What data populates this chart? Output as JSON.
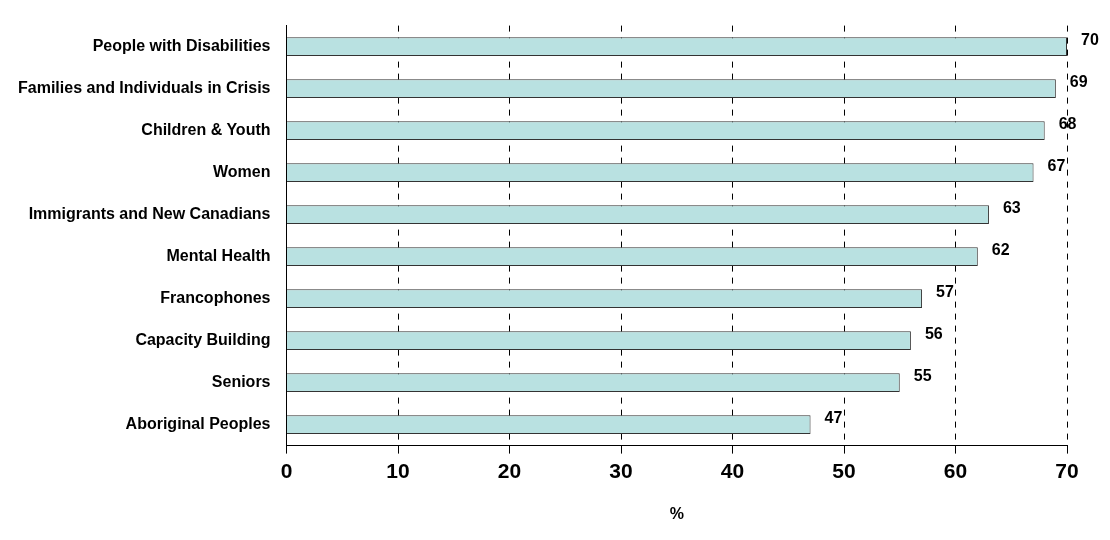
{
  "chart_data": {
    "type": "bar",
    "orientation": "horizontal",
    "categories": [
      "People with Disabilities",
      "Families and Individuals in Crisis",
      "Children & Youth",
      "Women",
      "Immigrants and New Canadians",
      "Mental Health",
      "Francophones",
      "Capacity Building",
      "Seniors",
      "Aboriginal Peoples"
    ],
    "values": [
      70,
      69,
      68,
      67,
      63,
      62,
      57,
      56,
      55,
      47
    ],
    "color": "#b9e1e1",
    "xlabel": "%",
    "xlim": [
      0,
      70
    ],
    "xticks": [
      0,
      10,
      20,
      30,
      40,
      50,
      60,
      70
    ],
    "grid": "x",
    "data_labels": true,
    "legend": false
  }
}
